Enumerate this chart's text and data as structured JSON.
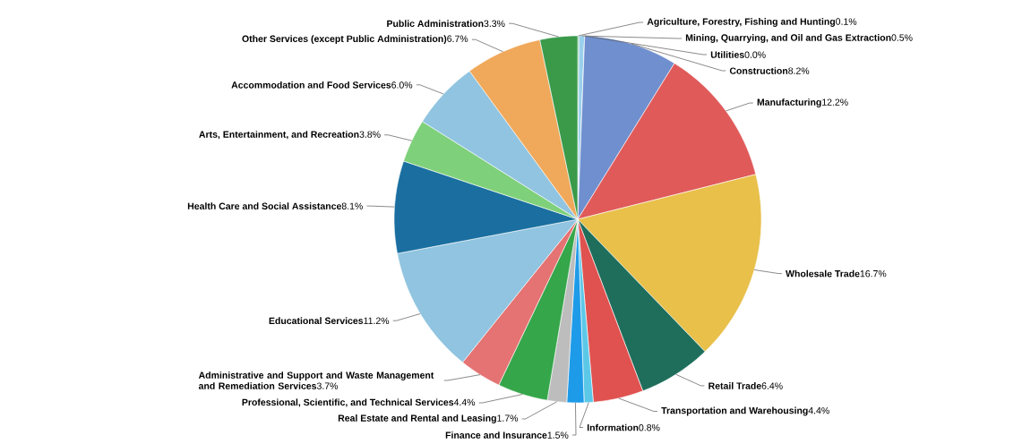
{
  "chart_data": {
    "type": "pie",
    "categories": [
      "Agriculture, Forestry, Fishing and Hunting",
      "Mining, Quarrying, and Oil and Gas Extraction",
      "Utilities",
      "Construction",
      "Manufacturing",
      "Wholesale Trade",
      "Retail Trade",
      "Transportation and Warehousing",
      "Information",
      "Finance and Insurance",
      "Real Estate and Rental and Leasing",
      "Professional, Scientific, and Technical Services",
      "Administrative and Support and Waste Management and Remediation Services",
      "Educational Services",
      "Health Care and Social Assistance",
      "Arts, Entertainment, and Recreation",
      "Accommodation and Food Services",
      "Other Services (except Public Administration)",
      "Public Administration"
    ],
    "values": [
      0.1,
      0.5,
      0.0,
      8.2,
      12.2,
      16.7,
      6.4,
      4.4,
      0.8,
      1.5,
      1.7,
      4.4,
      3.7,
      11.2,
      8.1,
      3.8,
      6.0,
      6.7,
      3.3
    ],
    "value_labels": [
      "0.1%",
      "0.5%",
      "0.0%",
      "8.2%",
      "12.2%",
      "16.7%",
      "6.4%",
      "4.4%",
      "0.8%",
      "1.5%",
      "1.7%",
      "4.4%",
      "3.7%",
      "11.2%",
      "8.1%",
      "3.8%",
      "6.0%",
      "6.7%",
      "3.3%"
    ],
    "colors": [
      "#3aa655",
      "#9ad0ec",
      "#5ab4e0",
      "#6f8fcf",
      "#e05a5a",
      "#e8c04a",
      "#1f6e5c",
      "#e0524f",
      "#5cc8e8",
      "#1e9be8",
      "#bdbdbd",
      "#35a64a",
      "#e57373",
      "#90c4e0",
      "#1a6fa0",
      "#7fd07a",
      "#90c4e0",
      "#f0a85a",
      "#3a9a4a"
    ]
  }
}
